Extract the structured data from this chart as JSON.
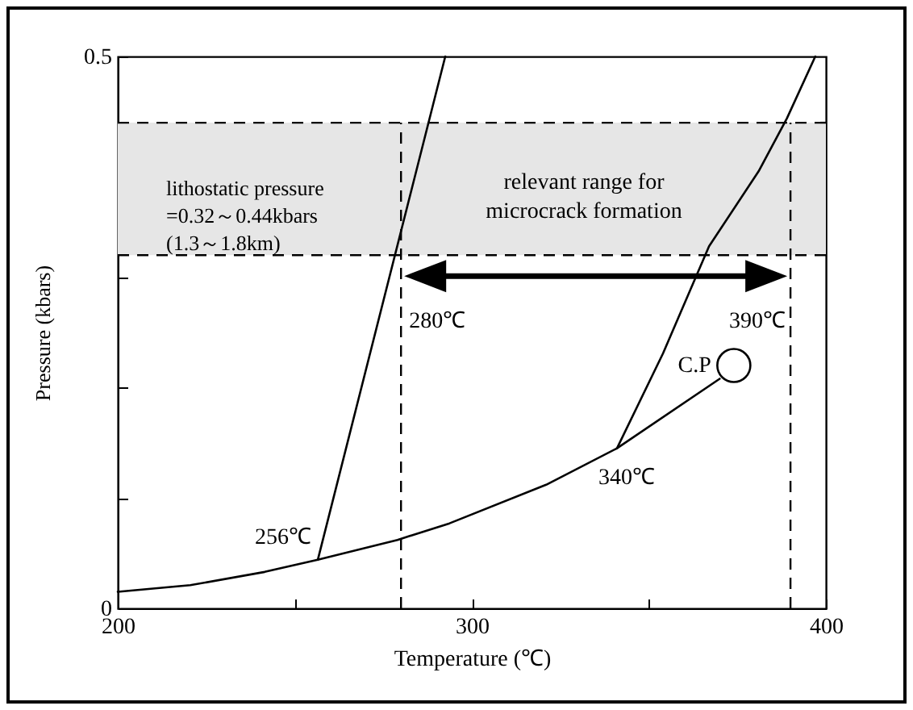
{
  "chart_data": {
    "type": "line",
    "xlabel": "Temperature (℃)",
    "ylabel": "Pressure (kbars)",
    "xlim": [
      200,
      400
    ],
    "xticks": [
      200,
      {
        "value": 250,
        "label": null
      },
      300,
      {
        "value": 350,
        "label": null
      },
      400
    ],
    "ylim": [
      0,
      0.5
    ],
    "yticks": [
      0,
      {
        "value": 0.1,
        "label": null
      },
      {
        "value": 0.2,
        "label": null
      },
      {
        "value": 0.3,
        "label": null
      },
      {
        "value": 0.4,
        "label": null
      },
      0.5
    ],
    "series": [
      {
        "color": "#000000",
        "x": [
          200,
          220.5,
          241.5,
          256.5,
          279,
          293.7,
          321,
          341,
          370
        ],
        "values": [
          0.015,
          0.021,
          0.033,
          0.044,
          0.062,
          0.077,
          0.112,
          0.145,
          0.208
        ]
      },
      {
        "color": "#000000",
        "x": [
          256.5,
          292.5
        ],
        "values": [
          0.044,
          0.5
        ]
      },
      {
        "color": "#000000",
        "x": [
          341,
          354,
          367,
          381,
          389,
          397
        ],
        "values": [
          0.145,
          0.231,
          0.328,
          0.396,
          0.444,
          0.5
        ]
      },
      {
        "type": "scatter",
        "marker": "circle",
        "color": "#000000",
        "x": [
          374
        ],
        "values": [
          0.22
        ]
      }
    ],
    "bands": [
      {
        "axis": "y",
        "from": 0.32,
        "to": 0.44,
        "label": "lithostatic pressure\n=0.32～0.44kbars\n(1.3～1.8km)",
        "color": "#e6e6e6"
      }
    ],
    "ref_lines": [
      {
        "axis": "x",
        "value": 280,
        "label": "280℃",
        "line_style": "dashed"
      },
      {
        "axis": "x",
        "value": 390,
        "label": "390℃",
        "line_style": "dashed"
      },
      {
        "axis": "y",
        "value": 0.32,
        "line_style": "dashed"
      },
      {
        "axis": "y",
        "value": 0.44,
        "line_style": "dashed"
      }
    ],
    "annotations": [
      {
        "text": "256℃",
        "x": 256.5,
        "y": 0.044
      },
      {
        "text": "340℃",
        "x": 341,
        "y": 0.145
      },
      {
        "text": "C.P",
        "x": 374,
        "y": 0.22
      },
      "relevant range for microcrack formation"
    ]
  }
}
